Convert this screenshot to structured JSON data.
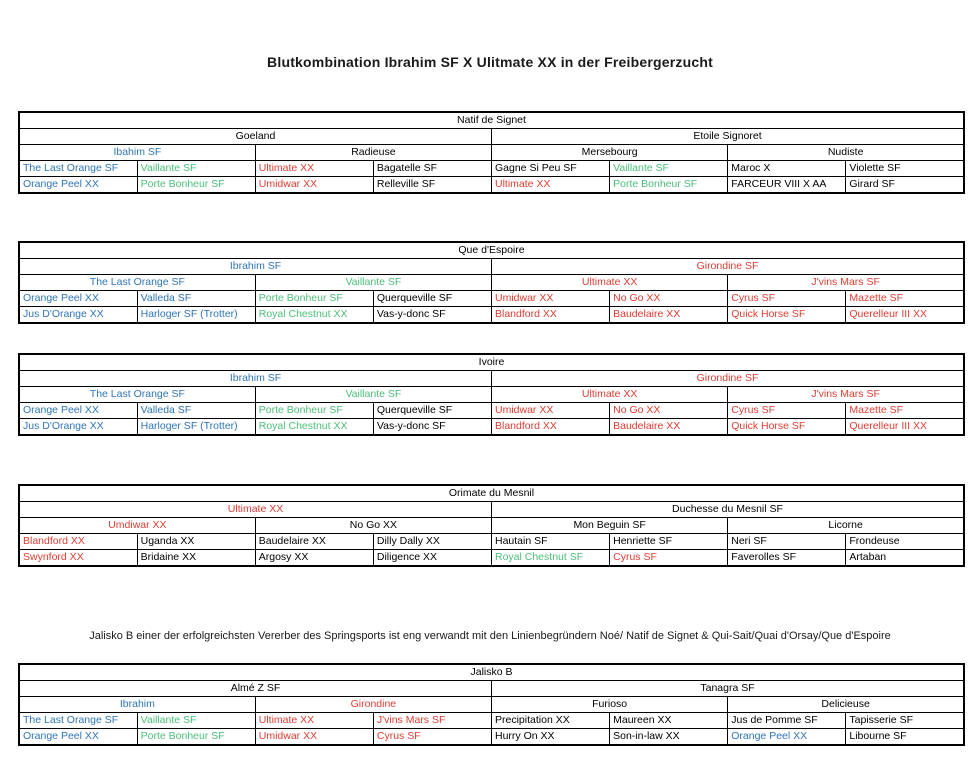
{
  "title": "Blutkombination Ibrahim SF  X  Ulitmate XX in der Freibergerzucht",
  "note": "Jalisko B einer der erfolgreichsten Vererber des Springsports ist eng verwandt mit den Linienbegründern Noé/ Natif de Signet & Qui-Sait/Quai d'Orsay/Que d'Espoire",
  "colors": {
    "blue": "#2E75B6",
    "green": "#4BBE7A",
    "red": "#E03C31",
    "black": "#000000"
  },
  "tables": [
    {
      "name": "Natif de Signet",
      "title": {
        "t": "Natif de Signet",
        "c": "black"
      },
      "row2": [
        {
          "t": "Goeland",
          "c": "black"
        },
        {
          "t": "Etoile Signoret",
          "c": "black"
        }
      ],
      "row3": [
        {
          "t": "Ibahim SF",
          "c": "blue"
        },
        {
          "t": "Radieuse",
          "c": "black"
        },
        {
          "t": "Mersebourg",
          "c": "black"
        },
        {
          "t": "Nudiste",
          "c": "black"
        }
      ],
      "row4": [
        {
          "t": "The Last Orange SF",
          "c": "blue"
        },
        {
          "t": "Vaillante SF",
          "c": "green"
        },
        {
          "t": "Ultimate XX",
          "c": "red"
        },
        {
          "t": "Bagatelle SF",
          "c": "black"
        },
        {
          "t": "Gagne Si Peu SF",
          "c": "black"
        },
        {
          "t": "Vaillante SF",
          "c": "green"
        },
        {
          "t": "Maroc X",
          "c": "black"
        },
        {
          "t": "Violette SF",
          "c": "black"
        }
      ],
      "row5": [
        {
          "t": "Orange Peel XX",
          "c": "blue"
        },
        {
          "t": "Porte Bonheur SF",
          "c": "green"
        },
        {
          "t": "Umidwar XX",
          "c": "red"
        },
        {
          "t": "Relleville SF",
          "c": "black"
        },
        {
          "t": "Ultimate XX",
          "c": "red"
        },
        {
          "t": "Porte Bonheur SF",
          "c": "green"
        },
        {
          "t": "FARCEUR VIII X AA",
          "c": "black"
        },
        {
          "t": "Girard SF",
          "c": "black"
        }
      ]
    },
    {
      "name": "Que d'Espoire",
      "title": {
        "t": "Que d'Espoire",
        "c": "black"
      },
      "row2": [
        {
          "t": "Ibrahim SF",
          "c": "blue"
        },
        {
          "t": "Girondine SF",
          "c": "red"
        }
      ],
      "row3": [
        {
          "t": "The Last Orange SF",
          "c": "blue"
        },
        {
          "t": "Vaillante SF",
          "c": "green"
        },
        {
          "t": "Ultimate XX",
          "c": "red"
        },
        {
          "t": "J'vins Mars SF",
          "c": "red"
        }
      ],
      "row4": [
        {
          "t": "Orange Peel XX",
          "c": "blue"
        },
        {
          "t": "Valleda SF",
          "c": "blue"
        },
        {
          "t": "Porte Bonheur SF",
          "c": "green"
        },
        {
          "t": "Querqueville SF",
          "c": "black"
        },
        {
          "t": "Umidwar XX",
          "c": "red"
        },
        {
          "t": "No Go XX",
          "c": "red"
        },
        {
          "t": "Cyrus SF",
          "c": "red"
        },
        {
          "t": "Mazette SF",
          "c": "red"
        }
      ],
      "row5": [
        {
          "t": "Jus D'Orange XX",
          "c": "blue"
        },
        {
          "t": "Harloger SF (Trotter)",
          "c": "blue"
        },
        {
          "t": "Royal Chestnut XX",
          "c": "green"
        },
        {
          "t": "Vas-y-donc SF",
          "c": "black"
        },
        {
          "t": "Blandford XX",
          "c": "red"
        },
        {
          "t": "Baudelaire XX",
          "c": "red"
        },
        {
          "t": "Quick Horse SF",
          "c": "red"
        },
        {
          "t": "Querelleur III XX",
          "c": "red"
        }
      ]
    },
    {
      "name": "Ivoire",
      "title": {
        "t": "Ivoire",
        "c": "black"
      },
      "row2": [
        {
          "t": "Ibrahim SF",
          "c": "blue"
        },
        {
          "t": "Girondine SF",
          "c": "red"
        }
      ],
      "row3": [
        {
          "t": "The Last Orange SF",
          "c": "blue"
        },
        {
          "t": "Vaillante SF",
          "c": "green"
        },
        {
          "t": "Ultimate XX",
          "c": "red"
        },
        {
          "t": "J'vins Mars SF",
          "c": "red"
        }
      ],
      "row4": [
        {
          "t": "Orange Peel XX",
          "c": "blue"
        },
        {
          "t": "Valleda SF",
          "c": "blue"
        },
        {
          "t": "Porte Bonheur SF",
          "c": "green"
        },
        {
          "t": "Querqueville SF",
          "c": "black"
        },
        {
          "t": "Umidwar XX",
          "c": "red"
        },
        {
          "t": "No Go XX",
          "c": "red"
        },
        {
          "t": "Cyrus SF",
          "c": "red"
        },
        {
          "t": "Mazette SF",
          "c": "red"
        }
      ],
      "row5": [
        {
          "t": "Jus D'Orange XX",
          "c": "blue"
        },
        {
          "t": "Harloger SF (Trotter)",
          "c": "blue"
        },
        {
          "t": "Royal Chestnut XX",
          "c": "green"
        },
        {
          "t": "Vas-y-donc SF",
          "c": "black"
        },
        {
          "t": "Blandford XX",
          "c": "red"
        },
        {
          "t": "Baudelaire XX",
          "c": "red"
        },
        {
          "t": "Quick Horse SF",
          "c": "red"
        },
        {
          "t": "Querelleur III XX",
          "c": "red"
        }
      ]
    },
    {
      "name": "Orimate du Mesnil",
      "title": {
        "t": "Orimate du Mesnil",
        "c": "black"
      },
      "row2": [
        {
          "t": "Ultimate XX",
          "c": "red"
        },
        {
          "t": "Duchesse du Mesnil SF",
          "c": "black"
        }
      ],
      "row3": [
        {
          "t": "Umdiwar XX",
          "c": "red"
        },
        {
          "t": "No Go XX",
          "c": "black"
        },
        {
          "t": "Mon Beguin SF",
          "c": "black"
        },
        {
          "t": "Licorne",
          "c": "black"
        }
      ],
      "row4": [
        {
          "t": "Blandford XX",
          "c": "red"
        },
        {
          "t": "Uganda XX",
          "c": "black"
        },
        {
          "t": "Baudelaire XX",
          "c": "black"
        },
        {
          "t": "Dilly Dally XX",
          "c": "black"
        },
        {
          "t": "Hautain SF",
          "c": "black"
        },
        {
          "t": "Henriette SF",
          "c": "black"
        },
        {
          "t": "Neri SF",
          "c": "black"
        },
        {
          "t": "Frondeuse",
          "c": "black"
        }
      ],
      "row5": [
        {
          "t": "Swynford XX",
          "c": "red"
        },
        {
          "t": "Bridaine XX",
          "c": "black"
        },
        {
          "t": "Argosy XX",
          "c": "black"
        },
        {
          "t": "Diligence XX",
          "c": "black"
        },
        {
          "t": "Royal Chestnut SF",
          "c": "green"
        },
        {
          "t": "Cyrus SF",
          "c": "red"
        },
        {
          "t": "Faverolles SF",
          "c": "black"
        },
        {
          "t": "Artaban",
          "c": "black"
        }
      ]
    },
    {
      "name": "Jalisko B",
      "title": {
        "t": "Jalisko B",
        "c": "black"
      },
      "row2": [
        {
          "t": "Almé Z SF",
          "c": "black"
        },
        {
          "t": "Tanagra SF",
          "c": "black"
        }
      ],
      "row3": [
        {
          "t": "Ibrahim",
          "c": "blue"
        },
        {
          "t": "Girondine",
          "c": "red"
        },
        {
          "t": "Furioso",
          "c": "black"
        },
        {
          "t": "Delicieuse",
          "c": "black"
        }
      ],
      "row4": [
        {
          "t": "The Last Orange SF",
          "c": "blue"
        },
        {
          "t": "Vaillante SF",
          "c": "green"
        },
        {
          "t": "Ultimate XX",
          "c": "red"
        },
        {
          "t": "J'vins Mars SF",
          "c": "red"
        },
        {
          "t": "Precipitation XX",
          "c": "black"
        },
        {
          "t": "Maureen XX",
          "c": "black"
        },
        {
          "t": "Jus de Pomme SF",
          "c": "black"
        },
        {
          "t": "Tapisserie SF",
          "c": "black"
        }
      ],
      "row5": [
        {
          "t": "Orange Peel XX",
          "c": "blue"
        },
        {
          "t": "Porte Bonheur SF",
          "c": "green"
        },
        {
          "t": "Umidwar XX",
          "c": "red"
        },
        {
          "t": "Cyrus SF",
          "c": "red"
        },
        {
          "t": "Hurry On XX",
          "c": "black"
        },
        {
          "t": "Son-in-law XX",
          "c": "black"
        },
        {
          "t": "Orange Peel XX",
          "c": "blue"
        },
        {
          "t": "Libourne SF",
          "c": "black"
        }
      ]
    }
  ]
}
